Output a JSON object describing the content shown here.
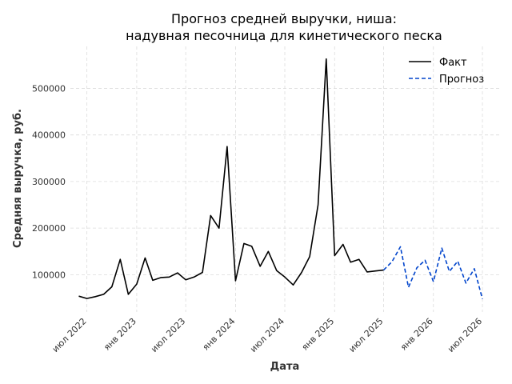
{
  "chart_data": {
    "type": "line",
    "title_lines": [
      "Прогноз средней выручки, ниша:",
      "надувная песочница для кинетического песка"
    ],
    "xlabel": "Дата",
    "ylabel": "Средняя выручка, руб.",
    "x_ticks": [
      {
        "date": "2022-07-01",
        "label": "июл 2022"
      },
      {
        "date": "2023-01-01",
        "label": "янв 2023"
      },
      {
        "date": "2023-07-01",
        "label": "июл 2023"
      },
      {
        "date": "2024-01-01",
        "label": "янв 2024"
      },
      {
        "date": "2024-07-01",
        "label": "июл 2024"
      },
      {
        "date": "2025-01-01",
        "label": "янв 2025"
      },
      {
        "date": "2025-07-01",
        "label": "июл 2025"
      },
      {
        "date": "2026-01-01",
        "label": "янв 2026"
      },
      {
        "date": "2026-07-01",
        "label": "июл 2026"
      }
    ],
    "y_ticks": [
      100000,
      200000,
      300000,
      400000,
      500000
    ],
    "xlim": [
      "2022-05-01",
      "2026-09-01"
    ],
    "ylim": [
      20000,
      590000
    ],
    "grid": true,
    "legend_position": "top-right",
    "series": [
      {
        "name": "Факт",
        "color": "#000000",
        "style": "solid",
        "x": [
          "2022-06-01",
          "2022-07-01",
          "2022-08-01",
          "2022-09-01",
          "2022-10-01",
          "2022-11-01",
          "2022-12-01",
          "2023-01-01",
          "2023-02-01",
          "2023-03-01",
          "2023-04-01",
          "2023-05-01",
          "2023-06-01",
          "2023-07-01",
          "2023-08-01",
          "2023-09-01",
          "2023-10-01",
          "2023-11-01",
          "2023-12-01",
          "2024-01-01",
          "2024-02-01",
          "2024-03-01",
          "2024-04-01",
          "2024-05-01",
          "2024-06-01",
          "2024-07-01",
          "2024-08-01",
          "2024-09-01",
          "2024-10-01",
          "2024-11-01",
          "2024-12-01",
          "2025-01-01",
          "2025-02-01",
          "2025-03-01",
          "2025-04-01",
          "2025-05-01",
          "2025-06-01",
          "2025-07-01"
        ],
        "values": [
          54000,
          49000,
          53000,
          58000,
          74000,
          133000,
          58000,
          80000,
          136000,
          88000,
          94000,
          95000,
          104000,
          89000,
          95000,
          105000,
          227000,
          200000,
          375000,
          87000,
          167000,
          161000,
          118000,
          150000,
          109000,
          95000,
          78000,
          105000,
          139000,
          250000,
          563000,
          141000,
          165000,
          127000,
          133000,
          106000,
          108000,
          110000
        ]
      },
      {
        "name": "Прогноз",
        "color": "#0044cc",
        "style": "dashed",
        "x": [
          "2025-07-01",
          "2025-08-01",
          "2025-09-01",
          "2025-10-01",
          "2025-11-01",
          "2025-12-01",
          "2026-01-01",
          "2026-02-01",
          "2026-03-01",
          "2026-04-01",
          "2026-05-01",
          "2026-06-01",
          "2026-07-01"
        ],
        "values": [
          110000,
          128000,
          160000,
          73000,
          115000,
          131000,
          85000,
          157000,
          107000,
          129000,
          82000,
          113000,
          48000
        ]
      }
    ]
  }
}
